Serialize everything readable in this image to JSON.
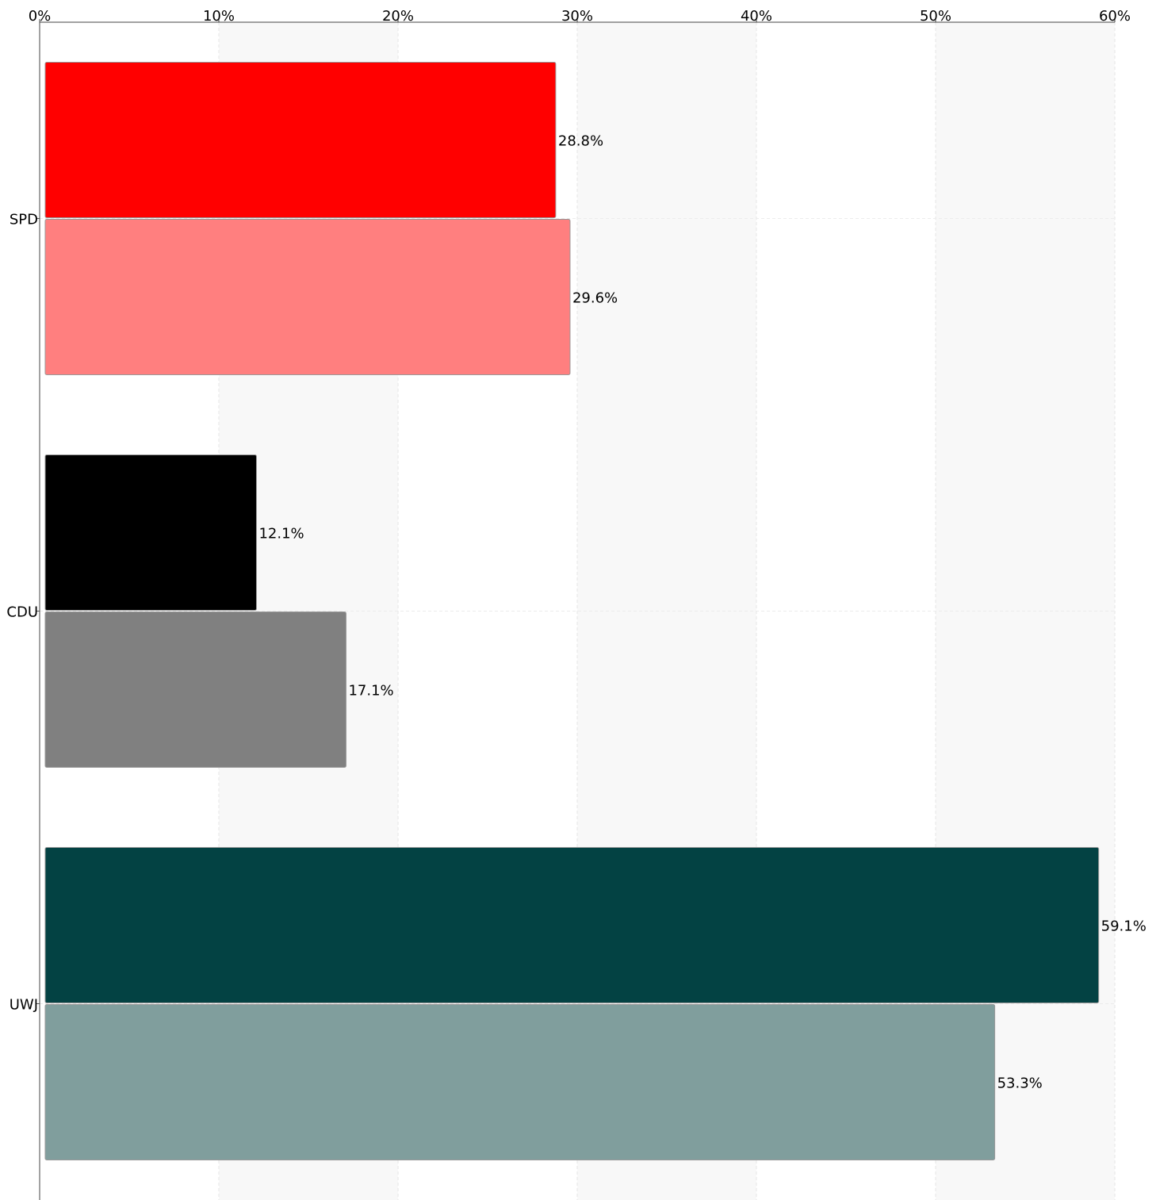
{
  "chart_data": {
    "type": "bar",
    "orientation": "horizontal",
    "categories": [
      "SPD",
      "CDU",
      "UWJ"
    ],
    "series": [
      {
        "values": [
          28.8,
          12.1,
          59.1
        ],
        "colors": [
          "#ff0000",
          "#000000",
          "#034243"
        ],
        "labels": [
          "28.8%",
          "12.1%",
          "59.1%"
        ]
      },
      {
        "values": [
          29.6,
          17.1,
          53.3
        ],
        "colors": [
          "#ff7f7f",
          "#808080",
          "#809e9d"
        ],
        "labels": [
          "29.6%",
          "17.1%",
          "53.3%"
        ]
      }
    ],
    "x_ticks": [
      0,
      10,
      20,
      30,
      40,
      50,
      60
    ],
    "x_tick_labels": [
      "0%",
      "10%",
      "20%",
      "30%",
      "40%",
      "50%",
      "60%"
    ],
    "xlim": [
      0,
      60
    ],
    "axis_position": "top",
    "grid": true,
    "title": "",
    "xlabel": "",
    "ylabel": ""
  }
}
